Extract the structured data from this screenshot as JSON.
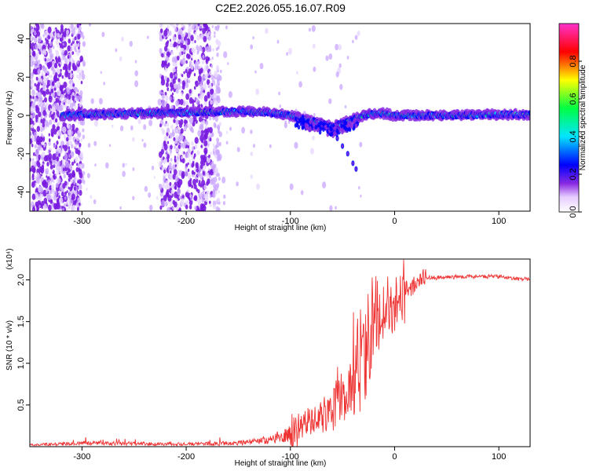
{
  "title": "C2E2.2026.055.16.07.R09",
  "chart_data": [
    {
      "type": "heatmap",
      "xlabel": "Height of straight line (km)",
      "ylabel": "Frequency (Hz)",
      "xlim": [
        -350,
        130
      ],
      "ylim": [
        -50,
        48
      ],
      "xticks": [
        -300,
        -200,
        -100,
        0,
        100
      ],
      "yticks": [
        -40,
        -20,
        0,
        20,
        40
      ],
      "colorbar": {
        "label": "Normalized spectral amplitude",
        "range": [
          0,
          1
        ],
        "ticks": [
          0.0,
          0.2,
          0.4,
          0.6,
          0.8
        ],
        "colormap": [
          "#ffffff",
          "#e6ccff",
          "#8a2be2",
          "#0000ff",
          "#00e5ff",
          "#00ff44",
          "#ffff00",
          "#ff0000",
          "#ff33cc"
        ]
      },
      "ridge": {
        "x": [
          -320,
          -300,
          -250,
          -200,
          -150,
          -120,
          -100,
          -80,
          -70,
          -60,
          -50,
          -40,
          -30,
          -20,
          -10,
          0,
          50,
          100,
          130
        ],
        "y": [
          0,
          0.5,
          1,
          1.5,
          2,
          1.5,
          0,
          -3,
          -4,
          -6,
          -4,
          -2,
          0,
          1,
          1,
          0,
          0,
          0.5,
          0.5
        ]
      },
      "branch": {
        "x": [
          -55,
          -50,
          -45,
          -40,
          -37
        ],
        "y": [
          -12,
          -16,
          -20,
          -25,
          -28
        ]
      }
    },
    {
      "type": "line",
      "xlabel": "Height of straight line (km)",
      "ylabel": "SNR (10 * v/v)",
      "multiplier": "(x10⁴)",
      "xlim": [
        -350,
        130
      ],
      "ylim": [
        0,
        2.25
      ],
      "xticks": [
        -300,
        -200,
        -100,
        0,
        100
      ],
      "yticks": [
        0.5,
        1.0,
        1.5,
        2.0
      ],
      "series": [
        {
          "color": "#ee3333",
          "trend_x": [
            -350,
            -300,
            -200,
            -150,
            -120,
            -100,
            -80,
            -60,
            -45,
            -35,
            -28,
            -20,
            -12,
            -5,
            0,
            10,
            20,
            30,
            60,
            100,
            130
          ],
          "trend_y": [
            0.02,
            0.04,
            0.03,
            0.04,
            0.08,
            0.15,
            0.3,
            0.45,
            0.65,
            0.95,
            1.25,
            1.5,
            1.65,
            1.7,
            1.75,
            1.85,
            1.95,
            2.02,
            2.04,
            2.04,
            2.0
          ]
        }
      ]
    }
  ]
}
